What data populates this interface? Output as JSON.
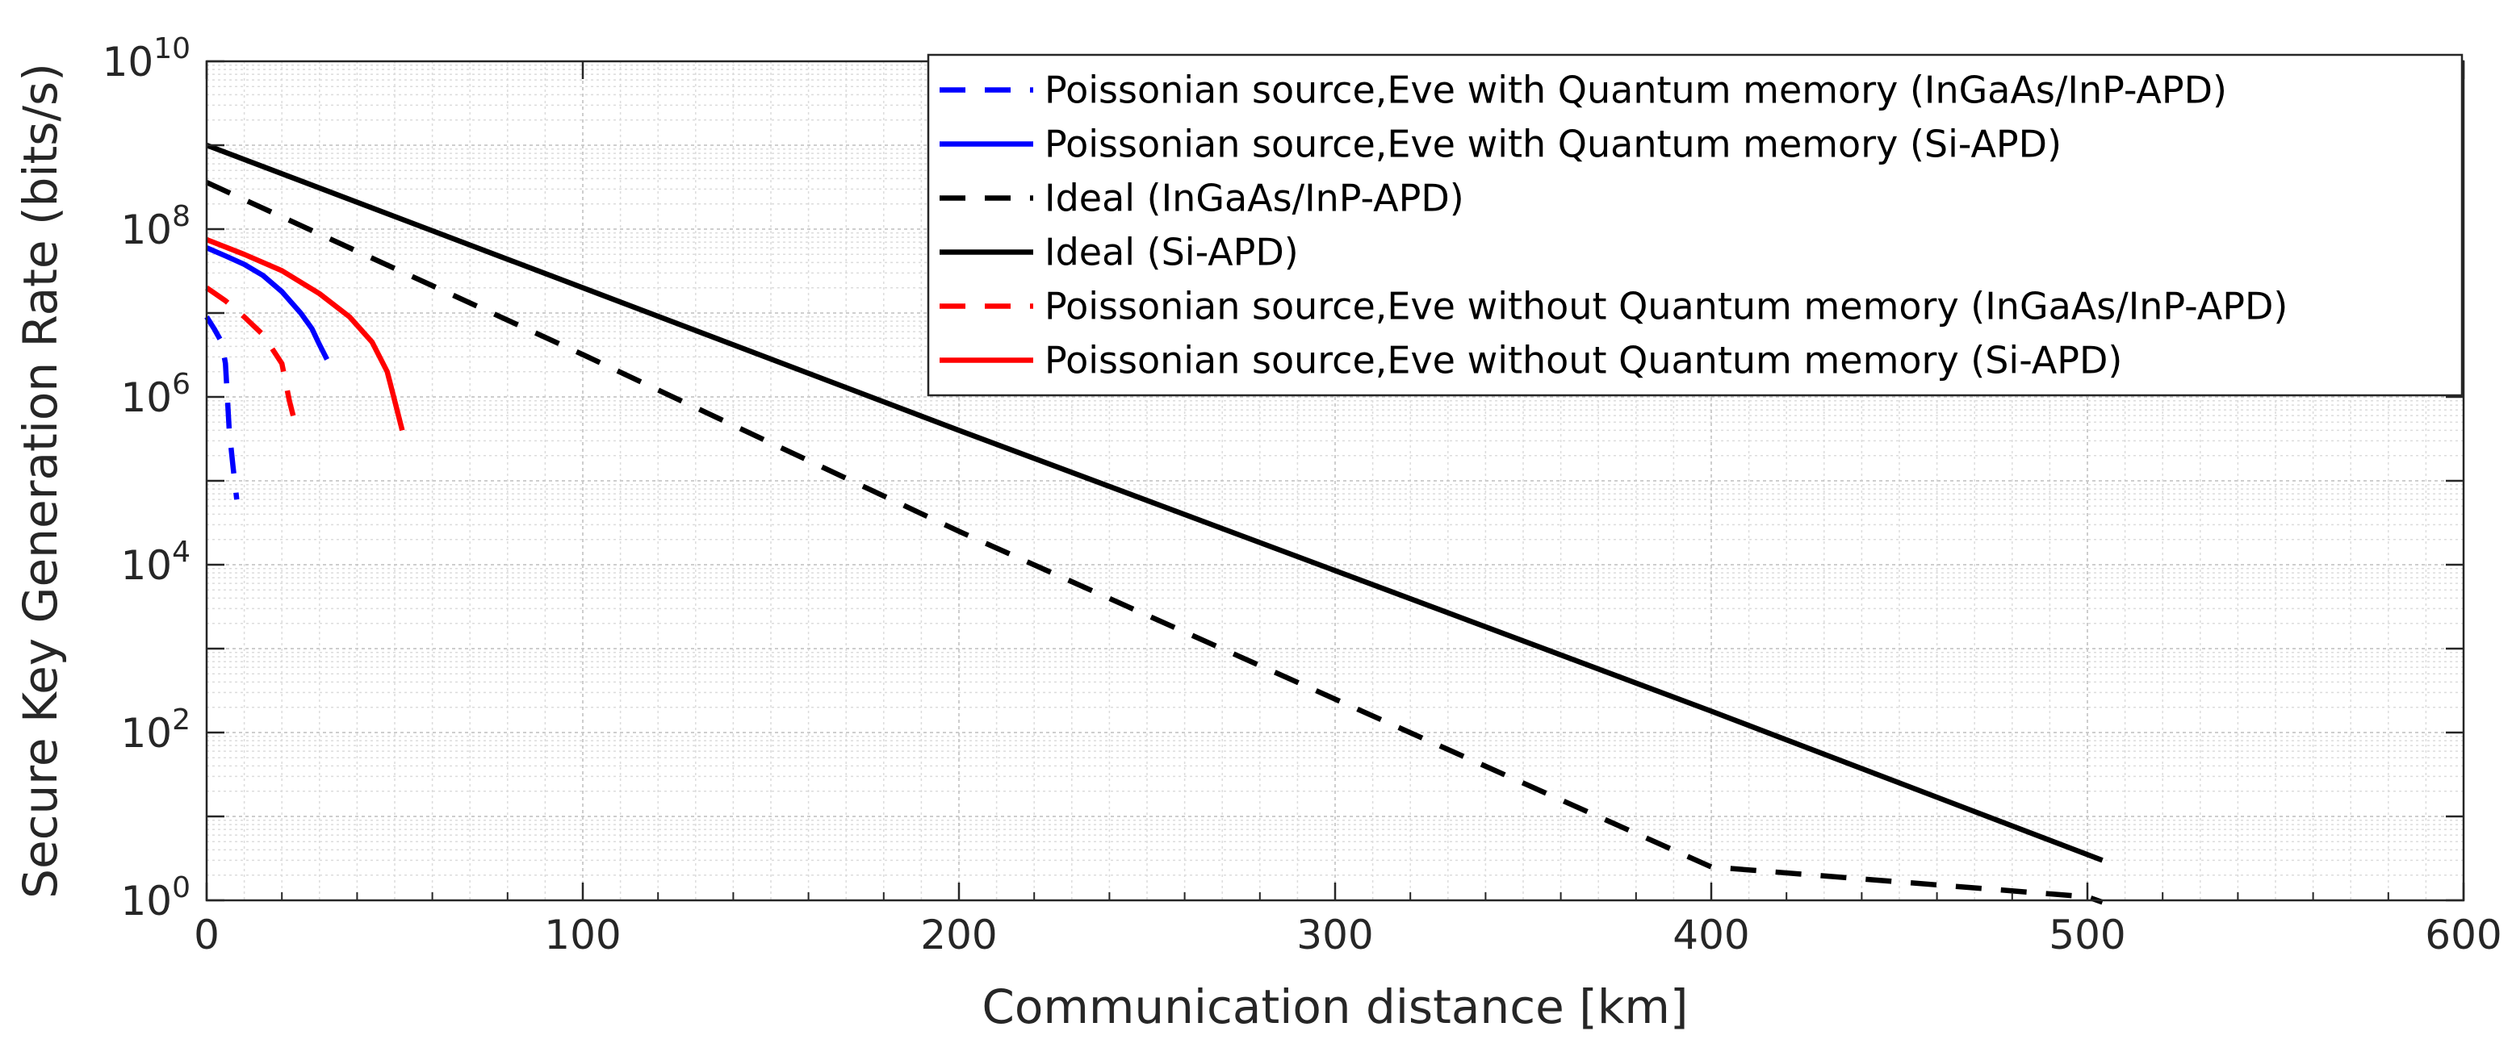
{
  "chart_data": {
    "type": "line",
    "title": "",
    "xlabel": "Communication distance [km]",
    "ylabel": "Secure Key Generation Rate (bits/s)",
    "xlim": [
      0,
      600
    ],
    "ylim": [
      1,
      10000000000
    ],
    "yscale": "log",
    "grid": true,
    "minor_grid": true,
    "legend_position": "top-right",
    "x_ticks": [
      {
        "value": 0,
        "label": "0"
      },
      {
        "value": 100,
        "label": "100"
      },
      {
        "value": 200,
        "label": "200"
      },
      {
        "value": 300,
        "label": "300"
      },
      {
        "value": 400,
        "label": "400"
      },
      {
        "value": 500,
        "label": "500"
      },
      {
        "value": 600,
        "label": "600"
      }
    ],
    "y_ticks": [
      {
        "value": 1,
        "base": "10",
        "exp": "0"
      },
      {
        "value": 100,
        "base": "10",
        "exp": "2"
      },
      {
        "value": 10000,
        "base": "10",
        "exp": "4"
      },
      {
        "value": 1000000,
        "base": "10",
        "exp": "6"
      },
      {
        "value": 100000000,
        "base": "10",
        "exp": "8"
      },
      {
        "value": 10000000000,
        "base": "10",
        "exp": "10"
      }
    ],
    "series": [
      {
        "name": "Poissonian source,Eve with Quantum memory (InGaAs/InP-APD)",
        "color": "#0000ff",
        "dash": "dashed",
        "x": [
          0,
          2,
          4,
          5,
          6,
          7,
          8
        ],
        "y": [
          9000000,
          6500000,
          4500000,
          2500000,
          400000,
          150000,
          60000
        ]
      },
      {
        "name": "Poissonian source,Eve with Quantum memory (Si-APD)",
        "color": "#0000ff",
        "dash": "solid",
        "x": [
          0,
          5,
          10,
          15,
          20,
          25,
          28,
          30,
          32
        ],
        "y": [
          60000000,
          48000000,
          38000000,
          28000000,
          18000000,
          10000000,
          6500000,
          4200000,
          2800000
        ]
      },
      {
        "name": "Ideal (InGaAs/InP-APD)",
        "color": "#000000",
        "dash": "dashed",
        "x": [
          0,
          100,
          200,
          300,
          400,
          500,
          504
        ],
        "y": [
          360000000,
          3200000,
          25000,
          250,
          2.5,
          1.1,
          0.95
        ]
      },
      {
        "name": "Ideal (Si-APD)",
        "color": "#000000",
        "dash": "solid",
        "x": [
          0,
          100,
          200,
          300,
          400,
          504
        ],
        "y": [
          1000000000,
          20000000,
          400000,
          8500,
          180,
          3
        ]
      },
      {
        "name": "Poissonian source,Eve without Quantum memory (InGaAs/InP-APD)",
        "color": "#ff0000",
        "dash": "dashed",
        "x": [
          0,
          5,
          10,
          15,
          20,
          22,
          24
        ],
        "y": [
          20000000,
          14000000,
          9000000,
          5500000,
          2500000,
          900000,
          400000
        ]
      },
      {
        "name": "Poissonian source,Eve without Quantum memory (Si-APD)",
        "color": "#ff0000",
        "dash": "solid",
        "x": [
          0,
          10,
          20,
          30,
          38,
          44,
          48,
          50,
          52
        ],
        "y": [
          75000000,
          50000000,
          32000000,
          17000000,
          9000000,
          4500000,
          2000000,
          900000,
          400000
        ]
      }
    ]
  }
}
